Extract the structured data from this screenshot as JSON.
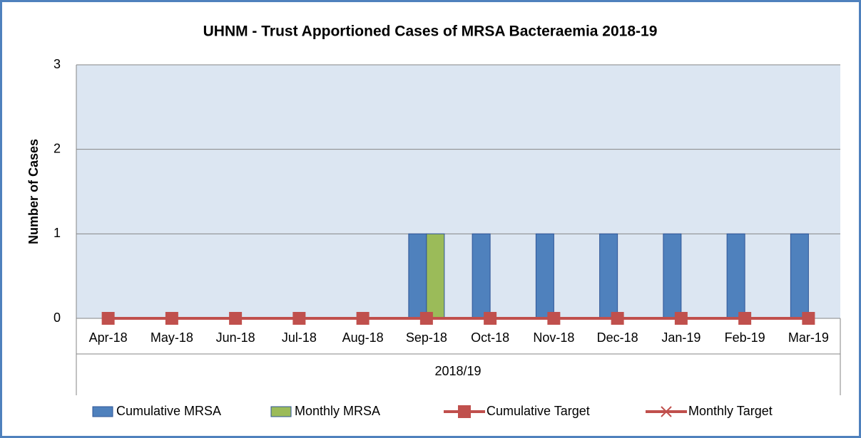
{
  "chart_data": {
    "type": "bar_line",
    "title": "UHNM - Trust Apportioned Cases of MRSA Bacteraemia 2018-19",
    "ylabel": "Number of Cases",
    "xgroup": "2018/19",
    "categories": [
      "Apr-18",
      "May-18",
      "Jun-18",
      "Jul-18",
      "Aug-18",
      "Sep-18",
      "Oct-18",
      "Nov-18",
      "Dec-18",
      "Jan-19",
      "Feb-19",
      "Mar-19"
    ],
    "series": [
      {
        "name": "Cumulative MRSA",
        "type": "bar",
        "color": "#4f81bd",
        "values": [
          0,
          0,
          0,
          0,
          0,
          1,
          1,
          1,
          1,
          1,
          1,
          1
        ]
      },
      {
        "name": "Monthly MRSA",
        "type": "bar",
        "color": "#9bbb59",
        "values": [
          0,
          0,
          0,
          0,
          0,
          1,
          0,
          0,
          0,
          0,
          0,
          0
        ]
      },
      {
        "name": "Cumulative Target",
        "type": "line",
        "marker": "square",
        "color": "#c0504d",
        "values": [
          0,
          0,
          0,
          0,
          0,
          0,
          0,
          0,
          0,
          0,
          0,
          0
        ]
      },
      {
        "name": "Monthly Target",
        "type": "line",
        "marker": "x",
        "color": "#c0504d",
        "values": [
          0,
          0,
          0,
          0,
          0,
          0,
          0,
          0,
          0,
          0,
          0,
          0
        ]
      }
    ],
    "ylim": [
      0,
      3
    ],
    "yticks": [
      0,
      1,
      2,
      3
    ],
    "grid": true,
    "legend": "bottom"
  }
}
